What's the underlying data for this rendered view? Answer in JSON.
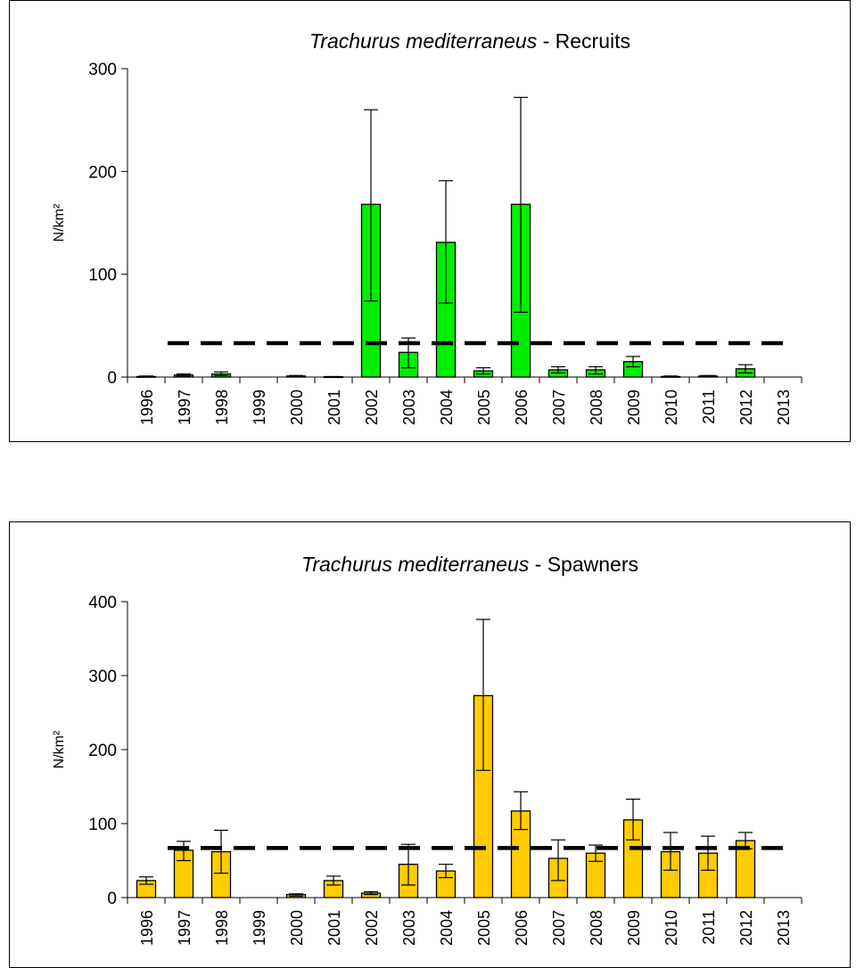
{
  "chart_data": [
    {
      "type": "bar",
      "title_species": "Trachurus mediterraneus",
      "title_suffix": " - Recruits",
      "ylabel": "N/km²",
      "xlabel": "",
      "ylim": [
        0,
        300
      ],
      "yticks": [
        "0",
        "100",
        "200",
        "300"
      ],
      "categories": [
        "1996",
        "1997",
        "1998",
        "1999",
        "2000",
        "2001",
        "2002",
        "2003",
        "2004",
        "2005",
        "2006",
        "2007",
        "2008",
        "2009",
        "2010",
        "2011",
        "2012",
        "2013"
      ],
      "values": [
        0.5,
        2,
        3,
        null,
        1,
        0.3,
        168,
        24,
        131,
        6,
        168,
        7,
        7,
        15,
        0.5,
        1,
        8,
        null
      ],
      "error_low": [
        0.3,
        1,
        1.5,
        null,
        0.5,
        0.1,
        74,
        9,
        72,
        3,
        63,
        4,
        3,
        10,
        0.2,
        0.5,
        4,
        null
      ],
      "error_high": [
        1,
        3,
        5,
        null,
        1.5,
        0.5,
        260,
        38,
        191,
        9,
        272,
        10,
        10,
        20,
        1,
        1.5,
        12,
        null
      ],
      "reference_line": 33,
      "bar_color": "#00ee00",
      "grid": false,
      "legend": "none"
    },
    {
      "type": "bar",
      "title_species": "Trachurus mediterraneus",
      "title_suffix": " - Spawners",
      "ylabel": "N/km²",
      "xlabel": "",
      "ylim": [
        0,
        400
      ],
      "yticks": [
        "0",
        "100",
        "200",
        "300",
        "400"
      ],
      "categories": [
        "1996",
        "1997",
        "1998",
        "1999",
        "2000",
        "2001",
        "2002",
        "2003",
        "2004",
        "2005",
        "2006",
        "2007",
        "2008",
        "2009",
        "2010",
        "2011",
        "2012",
        "2013"
      ],
      "values": [
        23,
        64,
        62,
        null,
        4,
        23,
        6,
        45,
        36,
        273,
        117,
        53,
        60,
        105,
        62,
        60,
        77,
        null
      ],
      "error_low": [
        18,
        50,
        33,
        null,
        2,
        17,
        4,
        17,
        27,
        172,
        92,
        23,
        49,
        78,
        37,
        37,
        66,
        null
      ],
      "error_high": [
        28,
        76,
        91,
        null,
        5,
        29,
        8,
        72,
        45,
        376,
        143,
        78,
        71,
        133,
        88,
        83,
        88,
        null
      ],
      "reference_line": 67,
      "bar_color": "#ffcc00",
      "grid": false,
      "legend": "none"
    }
  ]
}
